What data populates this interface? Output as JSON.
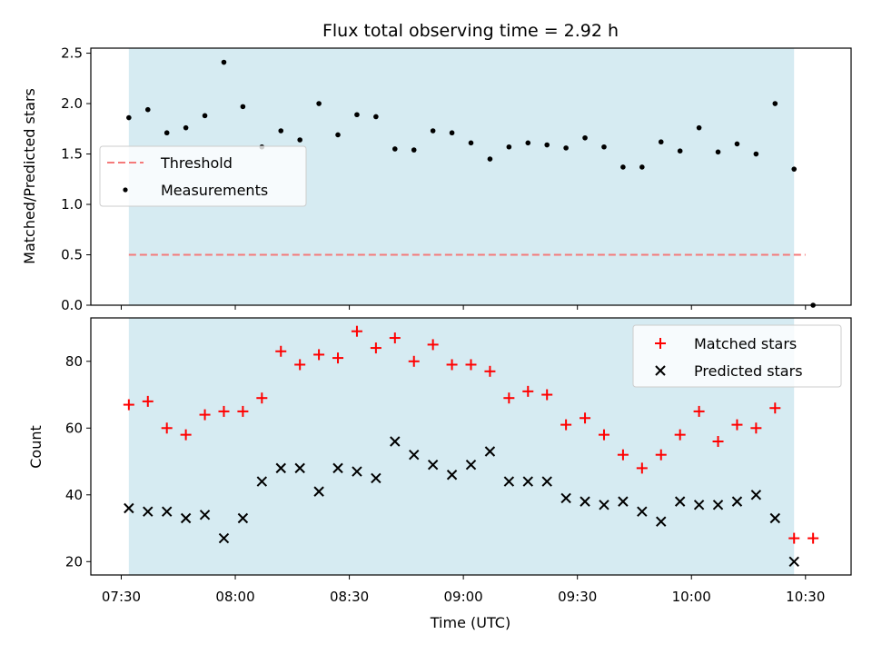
{
  "chart_data": [
    {
      "type": "scatter",
      "title": "Flux total observing time = 2.92 h",
      "xlabel": "",
      "ylabel": "Matched/Predicted stars",
      "ylim": [
        0,
        2.55
      ],
      "yticks": [
        0.0,
        0.5,
        1.0,
        1.5,
        2.0,
        2.5
      ],
      "ytick_labels": [
        "0.0",
        "0.5",
        "1.0",
        "1.5",
        "2.0",
        "2.5"
      ],
      "shaded_span": {
        "start": "07:32",
        "end": "10:27",
        "color": "#add8e6"
      },
      "threshold": {
        "name": "Threshold",
        "value": 0.5,
        "start": "07:32",
        "end": "10:30",
        "color": "#f47a7a"
      },
      "legend": {
        "placement": "center-left",
        "entries": [
          "Threshold",
          "Measurements"
        ]
      },
      "series": [
        {
          "name": "Measurements",
          "marker": "dot",
          "color": "#000000",
          "points": [
            [
              "07:32",
              1.86
            ],
            [
              "07:37",
              1.94
            ],
            [
              "07:42",
              1.71
            ],
            [
              "07:47",
              1.76
            ],
            [
              "07:52",
              1.88
            ],
            [
              "07:57",
              2.41
            ],
            [
              "08:02",
              1.97
            ],
            [
              "08:07",
              1.57
            ],
            [
              "08:12",
              1.73
            ],
            [
              "08:17",
              1.64
            ],
            [
              "08:22",
              2.0
            ],
            [
              "08:27",
              1.69
            ],
            [
              "08:32",
              1.89
            ],
            [
              "08:37",
              1.87
            ],
            [
              "08:42",
              1.55
            ],
            [
              "08:47",
              1.54
            ],
            [
              "08:52",
              1.73
            ],
            [
              "08:57",
              1.71
            ],
            [
              "09:02",
              1.61
            ],
            [
              "09:07",
              1.45
            ],
            [
              "09:12",
              1.57
            ],
            [
              "09:17",
              1.61
            ],
            [
              "09:22",
              1.59
            ],
            [
              "09:27",
              1.56
            ],
            [
              "09:32",
              1.66
            ],
            [
              "09:37",
              1.57
            ],
            [
              "09:42",
              1.37
            ],
            [
              "09:47",
              1.37
            ],
            [
              "09:52",
              1.62
            ],
            [
              "09:57",
              1.53
            ],
            [
              "10:02",
              1.76
            ],
            [
              "10:07",
              1.52
            ],
            [
              "10:12",
              1.6
            ],
            [
              "10:17",
              1.5
            ],
            [
              "10:22",
              2.0
            ],
            [
              "10:27",
              1.35
            ],
            [
              "10:32",
              0.0
            ]
          ]
        }
      ]
    },
    {
      "type": "scatter",
      "title": "",
      "xlabel": "Time (UTC)",
      "ylabel": "Count",
      "ylim": [
        16,
        93
      ],
      "xlim": [
        "07:22",
        "10:42"
      ],
      "yticks": [
        20,
        40,
        60,
        80
      ],
      "ytick_labels": [
        "20",
        "40",
        "60",
        "80"
      ],
      "xticks": [
        "07:30",
        "08:00",
        "08:30",
        "09:00",
        "09:30",
        "10:00",
        "10:30"
      ],
      "xtick_labels": [
        "07:30",
        "08:00",
        "08:30",
        "09:00",
        "09:30",
        "10:00",
        "10:30"
      ],
      "shaded_span": {
        "start": "07:32",
        "end": "10:27",
        "color": "#add8e6"
      },
      "legend": {
        "placement": "top-right",
        "entries": [
          "Matched stars",
          "Predicted stars"
        ]
      },
      "series": [
        {
          "name": "Matched stars",
          "marker": "plus",
          "color": "#ff0000",
          "points": [
            [
              "07:32",
              67
            ],
            [
              "07:37",
              68
            ],
            [
              "07:42",
              60
            ],
            [
              "07:47",
              58
            ],
            [
              "07:52",
              64
            ],
            [
              "07:57",
              65
            ],
            [
              "08:02",
              65
            ],
            [
              "08:07",
              69
            ],
            [
              "08:12",
              83
            ],
            [
              "08:17",
              79
            ],
            [
              "08:22",
              82
            ],
            [
              "08:27",
              81
            ],
            [
              "08:32",
              89
            ],
            [
              "08:37",
              84
            ],
            [
              "08:42",
              87
            ],
            [
              "08:47",
              80
            ],
            [
              "08:52",
              85
            ],
            [
              "08:57",
              79
            ],
            [
              "09:02",
              79
            ],
            [
              "09:07",
              77
            ],
            [
              "09:12",
              69
            ],
            [
              "09:17",
              71
            ],
            [
              "09:22",
              70
            ],
            [
              "09:27",
              61
            ],
            [
              "09:32",
              63
            ],
            [
              "09:37",
              58
            ],
            [
              "09:42",
              52
            ],
            [
              "09:47",
              48
            ],
            [
              "09:52",
              52
            ],
            [
              "09:57",
              58
            ],
            [
              "10:02",
              65
            ],
            [
              "10:07",
              56
            ],
            [
              "10:12",
              61
            ],
            [
              "10:17",
              60
            ],
            [
              "10:22",
              66
            ],
            [
              "10:27",
              27
            ],
            [
              "10:32",
              27
            ]
          ]
        },
        {
          "name": "Predicted stars",
          "marker": "x",
          "color": "#000000",
          "points": [
            [
              "07:32",
              36
            ],
            [
              "07:37",
              35
            ],
            [
              "07:42",
              35
            ],
            [
              "07:47",
              33
            ],
            [
              "07:52",
              34
            ],
            [
              "07:57",
              27
            ],
            [
              "08:02",
              33
            ],
            [
              "08:07",
              44
            ],
            [
              "08:12",
              48
            ],
            [
              "08:17",
              48
            ],
            [
              "08:22",
              41
            ],
            [
              "08:27",
              48
            ],
            [
              "08:32",
              47
            ],
            [
              "08:37",
              45
            ],
            [
              "08:42",
              56
            ],
            [
              "08:47",
              52
            ],
            [
              "08:52",
              49
            ],
            [
              "08:57",
              46
            ],
            [
              "09:02",
              49
            ],
            [
              "09:07",
              53
            ],
            [
              "09:12",
              44
            ],
            [
              "09:17",
              44
            ],
            [
              "09:22",
              44
            ],
            [
              "09:27",
              39
            ],
            [
              "09:32",
              38
            ],
            [
              "09:37",
              37
            ],
            [
              "09:42",
              38
            ],
            [
              "09:47",
              35
            ],
            [
              "09:52",
              32
            ],
            [
              "09:57",
              38
            ],
            [
              "10:02",
              37
            ],
            [
              "10:07",
              37
            ],
            [
              "10:12",
              38
            ],
            [
              "10:17",
              40
            ],
            [
              "10:22",
              33
            ],
            [
              "10:27",
              20
            ]
          ]
        }
      ]
    }
  ]
}
